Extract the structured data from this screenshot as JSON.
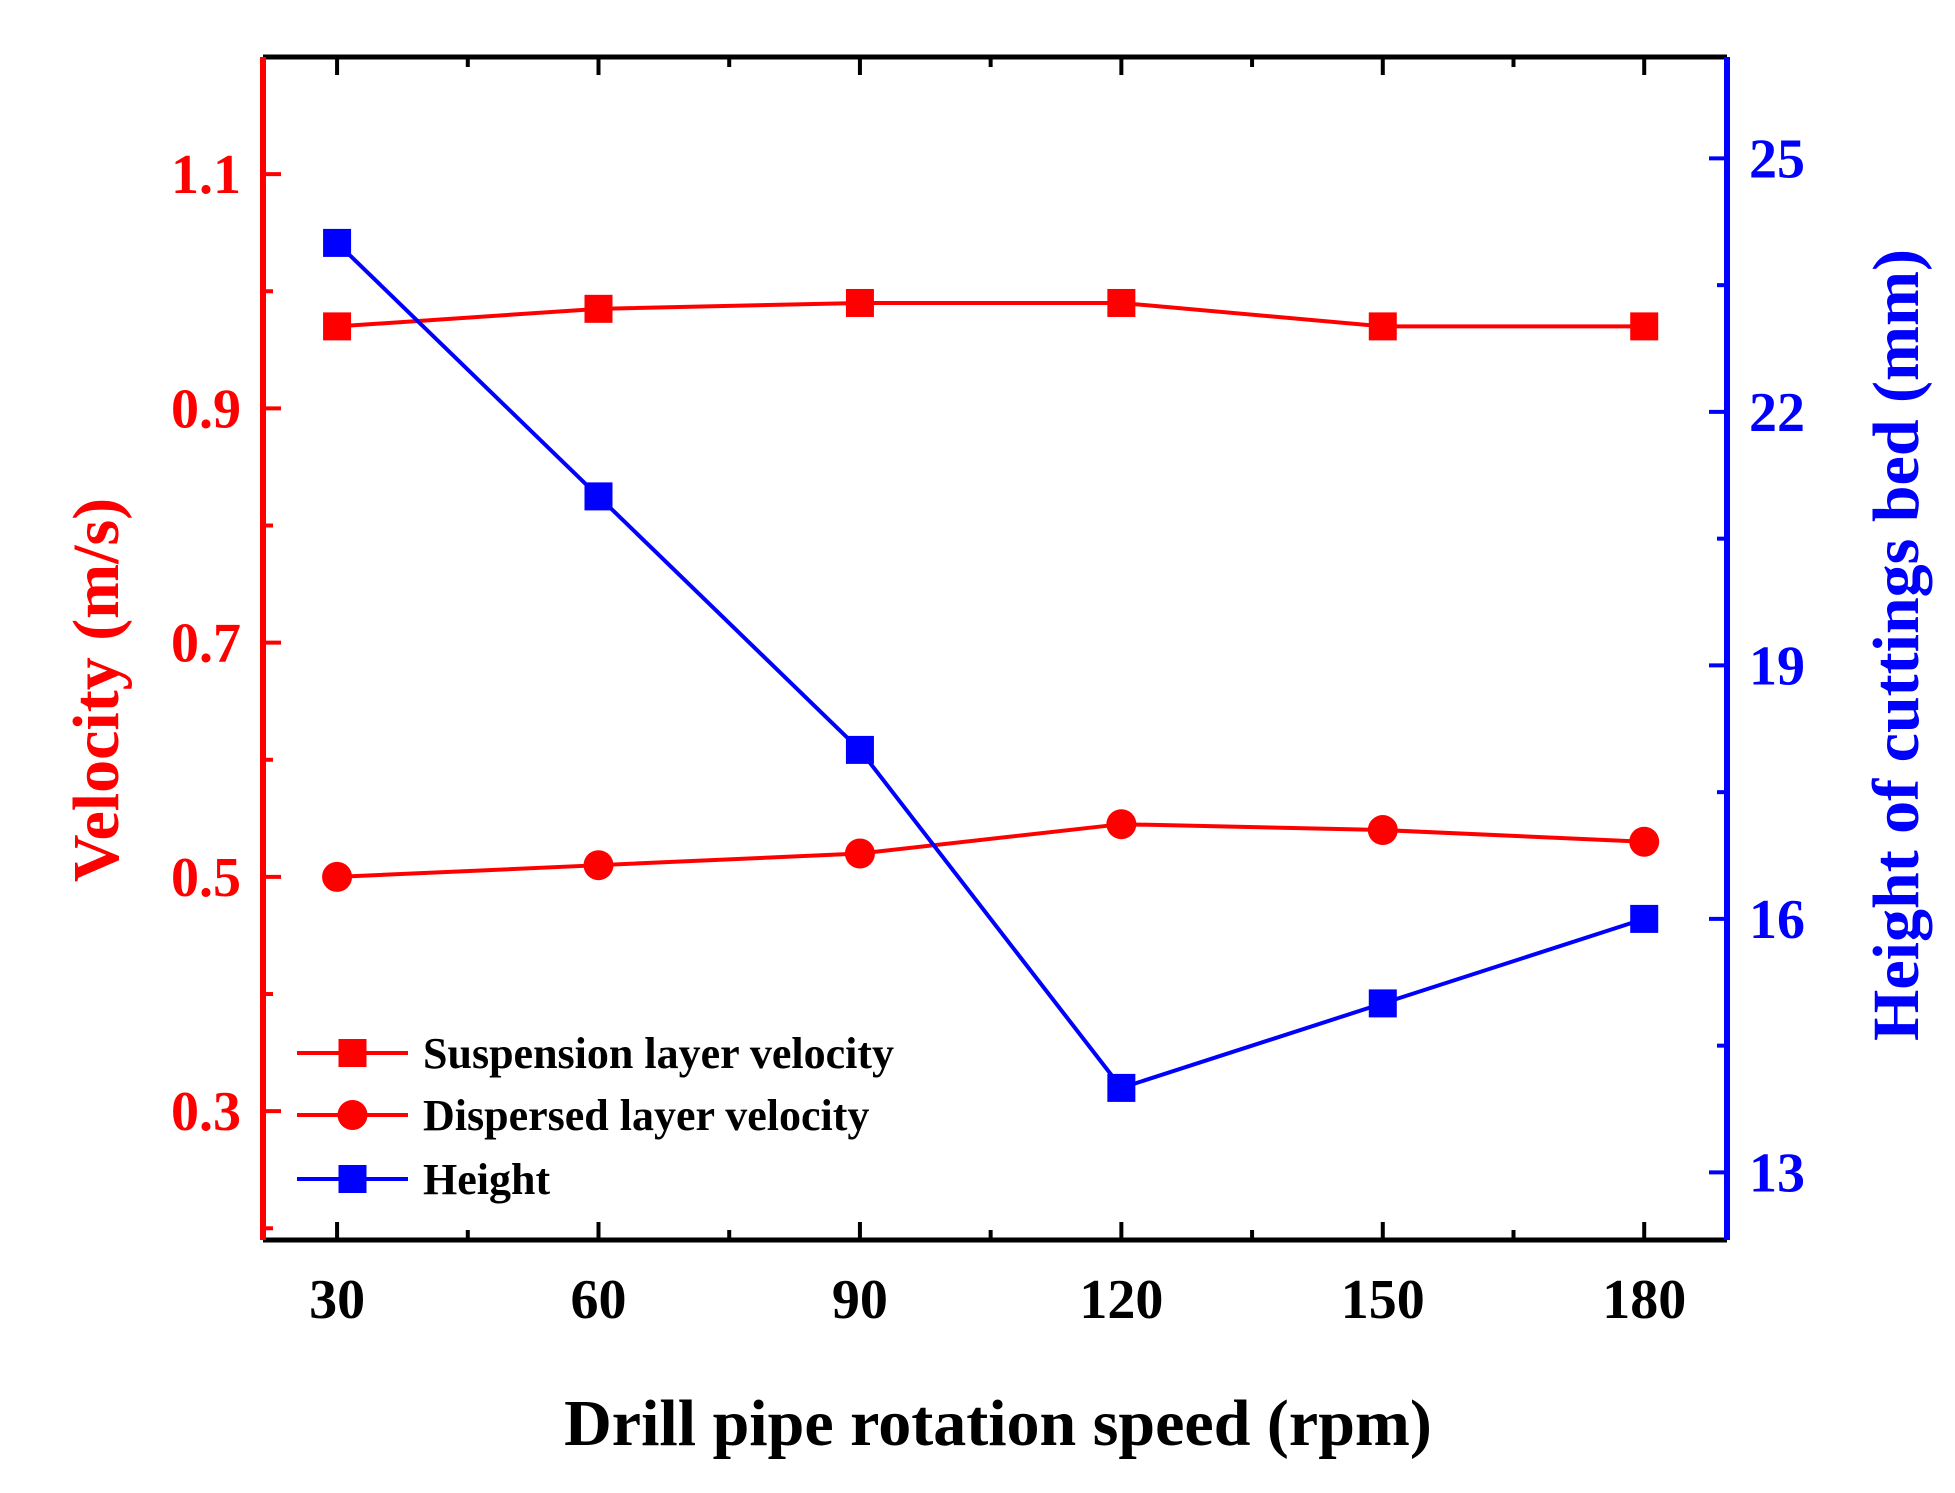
{
  "colors": {
    "velocity": "#ff0000",
    "height": "#0000ff",
    "frame": "#000000"
  },
  "chart_data": {
    "type": "line",
    "xlabel": "Drill pipe rotation speed (rpm)",
    "ylabel_left": "Velocity (m/s)",
    "ylabel_right": "Height of cuttings bed (mm)",
    "x": [
      30,
      60,
      90,
      120,
      150,
      180
    ],
    "x_tick_labels": [
      "30",
      "60",
      "90",
      "120",
      "150",
      "180"
    ],
    "xlim": [
      21.5,
      189.5
    ],
    "ylim_left": [
      0.19,
      1.2
    ],
    "ylim_right": [
      12.2,
      26.2
    ],
    "y_ticks_left": [
      "0.3",
      "0.5",
      "0.7",
      "0.9",
      "1.1"
    ],
    "y_ticks_right": [
      "13",
      "16",
      "19",
      "22",
      "25"
    ],
    "legend_position": "bottom-left",
    "series": [
      {
        "name": "Suspension layer velocity",
        "axis": "left",
        "marker": "square",
        "color": "#ff0000",
        "values": [
          0.97,
          0.985,
          0.99,
          0.99,
          0.97,
          0.97
        ]
      },
      {
        "name": "Dispersed layer velocity",
        "axis": "left",
        "marker": "circle",
        "color": "#ff0000",
        "values": [
          0.5,
          0.51,
          0.52,
          0.545,
          0.54,
          0.53
        ]
      },
      {
        "name": "Height",
        "axis": "right",
        "marker": "square",
        "color": "#0000ff",
        "values": [
          24.0,
          21.0,
          18.0,
          14.0,
          15.0,
          16.0
        ]
      }
    ]
  }
}
